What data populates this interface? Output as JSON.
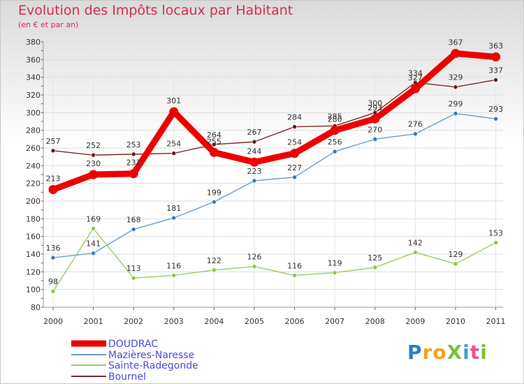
{
  "header": {
    "title": "Evolution des Impôts locaux par Habitant",
    "subtitle": "(en € et par an)"
  },
  "logo": {
    "text": "ProXiti",
    "letters": [
      "P",
      "r",
      "o",
      "X",
      "i",
      "t",
      "i"
    ],
    "colors": [
      "#2a7fc9",
      "#f7a21b",
      "#f7a21b",
      "#7fbf3d",
      "#3a9ad9",
      "#f04e98",
      "#7fbf3d"
    ]
  },
  "chart_data": {
    "type": "line",
    "title": "Evolution des Impôts locaux par Habitant",
    "subtitle": "(en € et par an)",
    "xlabel": "",
    "ylabel": "",
    "x": [
      "2000",
      "2001",
      "2002",
      "2003",
      "2004",
      "2005",
      "2006",
      "2007",
      "2008",
      "2009",
      "2010",
      "2011"
    ],
    "ylim": [
      80,
      380
    ],
    "yticks": [
      80,
      100,
      120,
      140,
      160,
      180,
      200,
      220,
      240,
      260,
      280,
      300,
      320,
      340,
      360,
      380
    ],
    "grid": true,
    "legend_position": "bottom-left",
    "series": [
      {
        "name": "DOUDRAC",
        "color": "#ee0000",
        "values": [
          213,
          230,
          231,
          301,
          255,
          244,
          254,
          280,
          293,
          327,
          367,
          363
        ],
        "labels": [
          "213",
          "230",
          "231",
          "301",
          "255",
          "244",
          "254",
          "280",
          "293",
          "327",
          "367",
          "363"
        ]
      },
      {
        "name": "Mazières-Naresse",
        "color": "#6a9dc8",
        "values": [
          136,
          141,
          168,
          181,
          199,
          223,
          227,
          256,
          270,
          276,
          299,
          293
        ],
        "labels": [
          "136",
          "141",
          "168",
          "181",
          "199",
          "223",
          "227",
          "256",
          "270",
          "276",
          "299",
          "293"
        ]
      },
      {
        "name": "Sainte-Radegonde",
        "color": "#99cc66",
        "values": [
          98,
          169,
          113,
          116,
          122,
          126,
          116,
          119,
          125,
          142,
          129,
          153
        ],
        "labels": [
          "98",
          "169",
          "113",
          "116",
          "122",
          "126",
          "116",
          "119",
          "125",
          "142",
          "129",
          "153"
        ]
      },
      {
        "name": "Bournel",
        "color": "#7a2a2a",
        "values": [
          257,
          252,
          253,
          254,
          264,
          267,
          284,
          285,
          300,
          334,
          329,
          337
        ],
        "labels": [
          "257",
          "252",
          "253",
          "254",
          "264",
          "267",
          "284",
          "285",
          "300",
          "334",
          "329",
          "337"
        ]
      }
    ]
  }
}
